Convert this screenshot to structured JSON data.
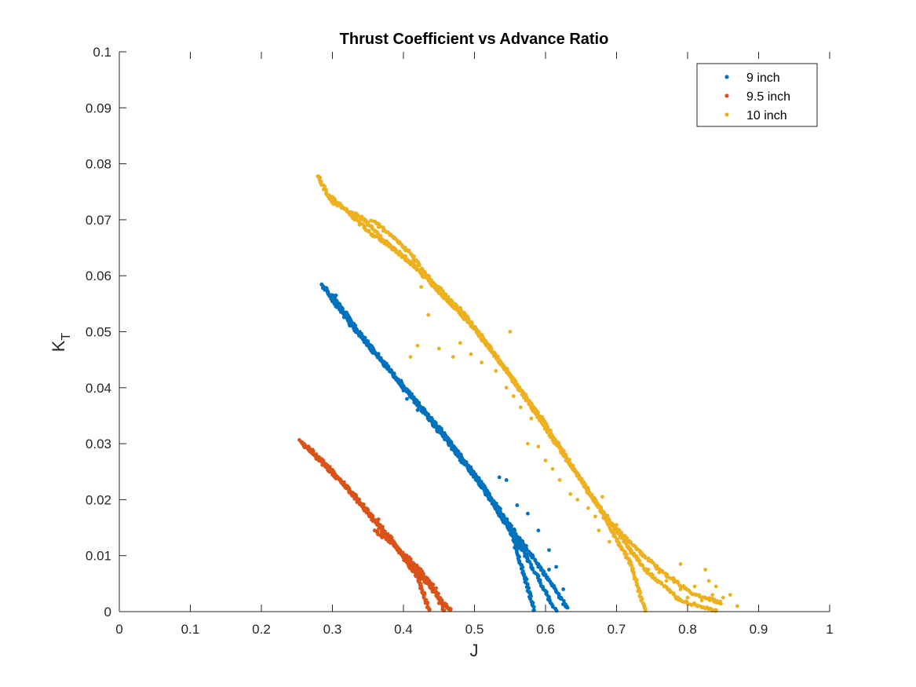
{
  "chart_data": {
    "type": "scatter",
    "title": "Thrust Coefficient vs Advance Ratio",
    "xlabel": "J",
    "ylabel_main": "K",
    "ylabel_sub": "T",
    "xlim": [
      0,
      1
    ],
    "ylim": [
      0,
      0.1
    ],
    "xticks": [
      0,
      0.1,
      0.2,
      0.3,
      0.4,
      0.5,
      0.6,
      0.7,
      0.8,
      0.9,
      1
    ],
    "xtick_labels": [
      "0",
      "0.1",
      "0.2",
      "0.3",
      "0.4",
      "0.5",
      "0.6",
      "0.7",
      "0.8",
      "0.9",
      "1"
    ],
    "yticks": [
      0,
      0.01,
      0.02,
      0.03,
      0.04,
      0.05,
      0.06,
      0.07,
      0.08,
      0.09,
      0.1
    ],
    "ytick_labels": [
      "0",
      "0.01",
      "0.02",
      "0.03",
      "0.04",
      "0.05",
      "0.06",
      "0.07",
      "0.08",
      "0.09",
      "0.1"
    ],
    "grid": false,
    "legend_position": "top-right",
    "series": [
      {
        "name": "9 inch",
        "color": "#0072BD",
        "segments": [
          [
            [
              0.285,
              0.0585
            ],
            [
              0.31,
              0.054
            ],
            [
              0.35,
              0.048
            ],
            [
              0.4,
              0.04
            ],
            [
              0.45,
              0.033
            ],
            [
              0.5,
              0.0245
            ],
            [
              0.55,
              0.015
            ],
            [
              0.585,
              0.0
            ]
          ],
          [
            [
              0.288,
              0.058
            ],
            [
              0.33,
              0.0505
            ],
            [
              0.38,
              0.0435
            ],
            [
              0.42,
              0.037
            ],
            [
              0.47,
              0.029
            ],
            [
              0.52,
              0.0205
            ],
            [
              0.57,
              0.0105
            ],
            [
              0.615,
              0.0
            ]
          ],
          [
            [
              0.3,
              0.0565
            ],
            [
              0.36,
              0.046
            ],
            [
              0.415,
              0.038
            ],
            [
              0.46,
              0.031
            ],
            [
              0.51,
              0.023
            ],
            [
              0.56,
              0.0135
            ],
            [
              0.6,
              0.0065
            ],
            [
              0.632,
              0.0004
            ]
          ]
        ],
        "scatter": [
          [
            0.305,
            0.0565
          ],
          [
            0.4,
            0.0395
          ],
          [
            0.405,
            0.038
          ],
          [
            0.42,
            0.036
          ],
          [
            0.535,
            0.024
          ],
          [
            0.545,
            0.0235
          ],
          [
            0.56,
            0.019
          ],
          [
            0.575,
            0.0175
          ],
          [
            0.59,
            0.0145
          ],
          [
            0.605,
            0.011
          ],
          [
            0.615,
            0.008
          ],
          [
            0.625,
            0.004
          ],
          [
            0.605,
            0.0075
          ],
          [
            0.62,
            0.0025
          ],
          [
            0.628,
            0.001
          ]
        ]
      },
      {
        "name": "9.5 inch",
        "color": "#D95319",
        "segments": [
          [
            [
              0.255,
              0.0305
            ],
            [
              0.29,
              0.0265
            ],
            [
              0.33,
              0.021
            ],
            [
              0.38,
              0.0135
            ],
            [
              0.42,
              0.006
            ],
            [
              0.437,
              0.0
            ]
          ],
          [
            [
              0.258,
              0.03
            ],
            [
              0.31,
              0.0235
            ],
            [
              0.36,
              0.016
            ],
            [
              0.41,
              0.0085
            ],
            [
              0.45,
              0.0025
            ],
            [
              0.468,
              0.0
            ]
          ],
          [
            [
              0.36,
              0.0145
            ],
            [
              0.39,
              0.0115
            ],
            [
              0.42,
              0.008
            ],
            [
              0.445,
              0.004
            ],
            [
              0.458,
              0.0
            ]
          ]
        ],
        "scatter": [
          [
            0.365,
            0.0165
          ],
          [
            0.41,
            0.009
          ],
          [
            0.425,
            0.0045
          ],
          [
            0.45,
            0.0015
          ],
          [
            0.462,
            0.0008
          ]
        ]
      },
      {
        "name": "10 inch",
        "color": "#EDB120",
        "segments": [
          [
            [
              0.28,
              0.0778
            ],
            [
              0.3,
              0.073
            ],
            [
              0.34,
              0.0705
            ],
            [
              0.38,
              0.0655
            ],
            [
              0.42,
              0.061
            ],
            [
              0.46,
              0.056
            ],
            [
              0.5,
              0.0505
            ],
            [
              0.54,
              0.044
            ],
            [
              0.58,
              0.037
            ],
            [
              0.62,
              0.029
            ],
            [
              0.66,
              0.0215
            ],
            [
              0.7,
              0.0145
            ],
            [
              0.74,
              0.0075
            ],
            [
              0.79,
              0.002
            ],
            [
              0.845,
              0.0
            ]
          ],
          [
            [
              0.3,
              0.074
            ],
            [
              0.35,
              0.068
            ],
            [
              0.4,
              0.0635
            ],
            [
              0.44,
              0.059
            ],
            [
              0.48,
              0.054
            ],
            [
              0.52,
              0.0475
            ],
            [
              0.56,
              0.0405
            ],
            [
              0.6,
              0.0335
            ],
            [
              0.64,
              0.0255
            ],
            [
              0.68,
              0.0175
            ],
            [
              0.72,
              0.0085
            ],
            [
              0.74,
              0.0
            ]
          ],
          [
            [
              0.355,
              0.07
            ],
            [
              0.38,
              0.0675
            ],
            [
              0.41,
              0.064
            ],
            [
              0.45,
              0.057
            ],
            [
              0.49,
              0.0525
            ],
            [
              0.53,
              0.0455
            ],
            [
              0.57,
              0.0385
            ],
            [
              0.61,
              0.031
            ],
            [
              0.65,
              0.0235
            ],
            [
              0.69,
              0.016
            ],
            [
              0.73,
              0.011
            ],
            [
              0.77,
              0.0065
            ],
            [
              0.81,
              0.003
            ],
            [
              0.85,
              0.0015
            ]
          ]
        ],
        "scatter": [
          [
            0.41,
            0.062
          ],
          [
            0.425,
            0.058
          ],
          [
            0.435,
            0.053
          ],
          [
            0.42,
            0.0475
          ],
          [
            0.41,
            0.0455
          ],
          [
            0.45,
            0.047
          ],
          [
            0.47,
            0.0455
          ],
          [
            0.48,
            0.048
          ],
          [
            0.495,
            0.046
          ],
          [
            0.51,
            0.0445
          ],
          [
            0.53,
            0.043
          ],
          [
            0.545,
            0.04
          ],
          [
            0.555,
            0.0385
          ],
          [
            0.565,
            0.0365
          ],
          [
            0.58,
            0.0345
          ],
          [
            0.575,
            0.03
          ],
          [
            0.59,
            0.0295
          ],
          [
            0.6,
            0.027
          ],
          [
            0.61,
            0.0255
          ],
          [
            0.62,
            0.0235
          ],
          [
            0.635,
            0.021
          ],
          [
            0.645,
            0.02
          ],
          [
            0.66,
            0.0185
          ],
          [
            0.67,
            0.017
          ],
          [
            0.675,
            0.0145
          ],
          [
            0.69,
            0.0125
          ],
          [
            0.7,
            0.0155
          ],
          [
            0.71,
            0.0125
          ],
          [
            0.72,
            0.0105
          ],
          [
            0.73,
            0.0095
          ],
          [
            0.745,
            0.0075
          ],
          [
            0.76,
            0.007
          ],
          [
            0.77,
            0.0055
          ],
          [
            0.78,
            0.006
          ],
          [
            0.79,
            0.004
          ],
          [
            0.8,
            0.0025
          ],
          [
            0.81,
            0.0045
          ],
          [
            0.82,
            0.002
          ],
          [
            0.83,
            0.0055
          ],
          [
            0.835,
            0.003
          ],
          [
            0.84,
            0.0045
          ],
          [
            0.85,
            0.0025
          ],
          [
            0.86,
            0.003
          ],
          [
            0.87,
            0.001
          ],
          [
            0.825,
            0.0075
          ],
          [
            0.79,
            0.0085
          ],
          [
            0.68,
            0.0205
          ],
          [
            0.55,
            0.05
          ]
        ]
      }
    ]
  }
}
